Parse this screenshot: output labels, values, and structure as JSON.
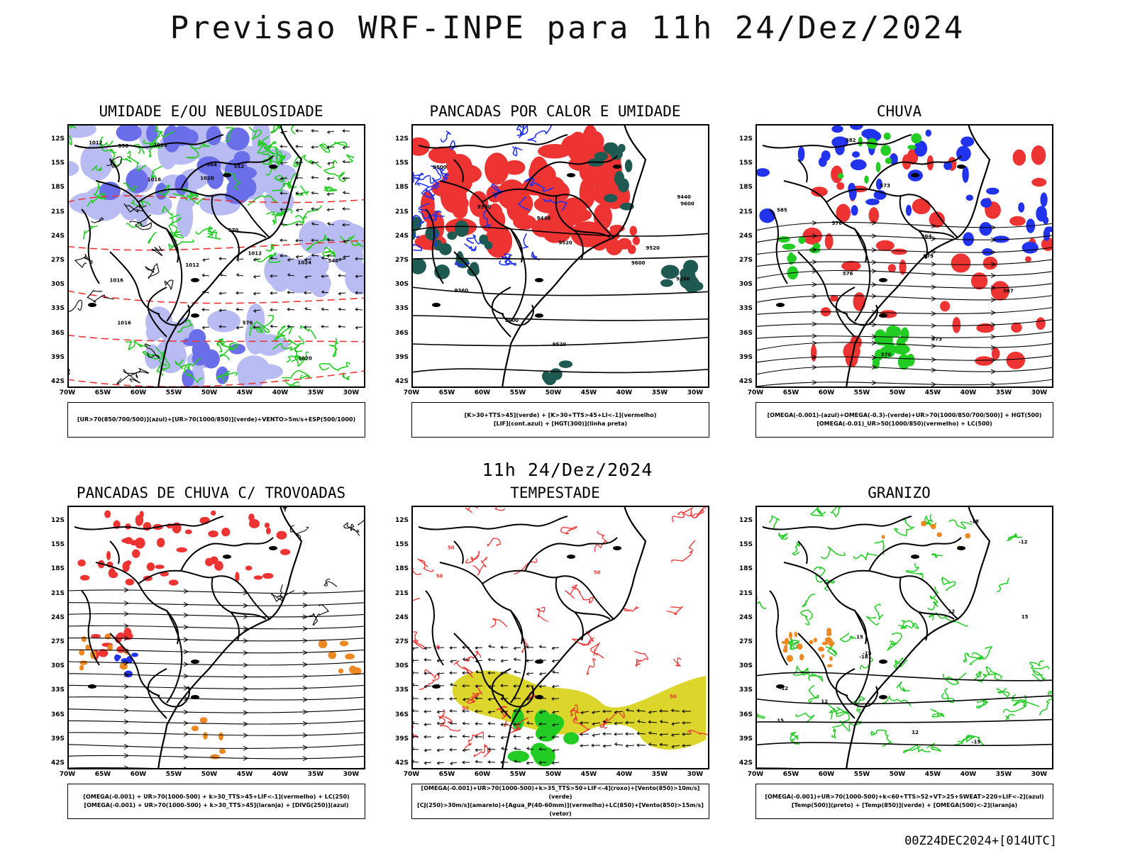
{
  "title": "Previsao WRF-INPE  para 11h 24/Dez/2024",
  "subtitle": "11h 24/Dez/2024",
  "footer": "00Z24DEC2024+[014UTC]",
  "axes": {
    "lat_labels": [
      "12S",
      "15S",
      "18S",
      "21S",
      "24S",
      "27S",
      "30S",
      "33S",
      "36S",
      "39S",
      "42S"
    ],
    "lon_labels": [
      "70W",
      "65W",
      "60W",
      "55W",
      "50W",
      "45W",
      "40W",
      "35W",
      "30W"
    ]
  },
  "colors": {
    "blue": "#2233ee",
    "light_blue": "#b8bcf2",
    "mid_blue": "#6a6ee8",
    "green": "#22cc22",
    "red": "#ee3333",
    "dark_teal": "#1f5a52",
    "yellow": "#dcd62c",
    "orange": "#ee8822"
  },
  "panels": [
    {
      "id": "umidade",
      "title": "UMIDADE E/OU NEBULOSIDADE",
      "legend_lines": [
        "[UR>70(850/700/500)](azul)+[UR>70(1000/850)](verde)+VENTO>5m/s+ESP(500/1000)"
      ],
      "contour_labels": [
        "1012",
        "1012",
        "1016",
        "1016",
        "1012",
        "1020",
        "1016",
        "1016",
        "1020",
        "1024",
        "576",
        "570",
        "564",
        "558",
        "552",
        "546"
      ]
    },
    {
      "id": "pancadas-calor",
      "title": "PANCADAS POR CALOR E UMIDADE",
      "legend_lines": [
        "[K>30+TTS>45](verde) + [K>30+TTS>45+LI<-1](vermelho)",
        "[LIF](cont.azul) + [HGT(300)](linha preta)"
      ],
      "contour_labels": [
        "9600",
        "9520",
        "9600",
        "9520",
        "9520",
        "9440",
        "9440",
        "9360",
        "9360",
        "9280",
        "9600",
        "9600"
      ]
    },
    {
      "id": "chuva",
      "title": "CHUVA",
      "legend_lines": [
        "[OMEGA(-0.001)-(azul)+OMEGA(-0.3)-(verde)+UR>70(1000/850/700/500)] + HGT(500)",
        "[OMEGA(-0.01)_UR>50(1000/850)(vermelho) + LC(500)"
      ],
      "contour_labels": [
        "585",
        "582",
        "579",
        "576",
        "573",
        "570",
        "567",
        "564",
        "576",
        "573"
      ]
    },
    {
      "id": "pancadas-trovoadas",
      "title": "PANCADAS DE CHUVA C/ TROVOADAS",
      "legend_lines": [
        "[OMEGA(-0.001) + UR>70(1000-500) + k>30_TTS>45+LIF<-1](vermelho) + LC(250)",
        "[OMEGA(-0.001) + UR>70(1000-500) + k>30_TTS>45](laranja) + [DIVG(250)](azul)"
      ],
      "contour_labels": []
    },
    {
      "id": "tempestade",
      "title": "TEMPESTADE",
      "legend_lines": [
        "[OMEGA(-0.001)+UR>70(1000-500)+k>35_TTS>50+LIF<-4](roxo)+[Vento(850)>10m/s](verde)",
        "[CJ(250)>30m/s](amarelo)+[Agua_P(40-60mm)](vermelho)+LC(850)+[Vento(850)>15m/s](vetor)"
      ],
      "contour_labels": [
        "50",
        "50",
        "50",
        "50",
        "50",
        "50",
        "50"
      ]
    },
    {
      "id": "granizo",
      "title": "GRANIZO",
      "legend_lines": [
        "[OMEGA(-0.001)+UR>70(1000-500)+k<60+TTS>52+VT>25+SWEAT>220+LIF<-2](azul)",
        "[Temp(500)](preto) + [Temp(850)](verde) + [OMEGA(500)<-2](laranja)"
      ],
      "contour_labels": [
        "15",
        "12",
        "15",
        "12",
        "-12",
        "-15",
        "-18",
        "-12",
        "-15",
        "-18",
        "15",
        "12"
      ]
    }
  ]
}
